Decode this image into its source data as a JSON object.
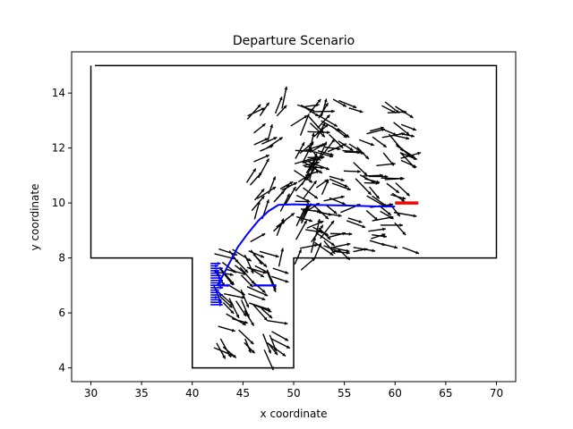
{
  "chart_data": {
    "type": "line",
    "title": "Departure Scenario",
    "xlabel": "x coordinate",
    "ylabel": "y coordinate",
    "xlim": [
      28.1,
      71.9
    ],
    "ylim": [
      3.5,
      15.5
    ],
    "xticks": [
      30,
      35,
      40,
      45,
      50,
      55,
      60,
      65,
      70
    ],
    "yticks": [
      4,
      6,
      8,
      10,
      12,
      14
    ],
    "grid": false,
    "legend": "none",
    "colors": {
      "boundary": "#000000",
      "trajectory": "#0000ff",
      "goal": "#ff0000",
      "samples": "#000000"
    },
    "boundary": {
      "x": [
        30.4,
        70,
        70,
        50,
        50,
        40,
        40,
        30,
        30
      ],
      "y": [
        15,
        15,
        8,
        8,
        4,
        4,
        8,
        8,
        15
      ]
    },
    "trajectory": {
      "x": [
        42.5,
        43.5,
        44.5,
        45.5,
        46.5,
        47.5,
        48.5,
        50,
        52,
        55,
        58,
        60
      ],
      "y": [
        7.0,
        7.7,
        8.4,
        8.9,
        9.35,
        9.7,
        9.93,
        9.95,
        9.93,
        9.91,
        9.88,
        9.87
      ]
    },
    "start_pose": {
      "x": 42.5,
      "y": 7.0,
      "heading_deg": 0
    },
    "goal_pose": {
      "x": 60.0,
      "y": 10.0,
      "heading_deg": 0
    },
    "sample_arrow_region": {
      "x": [
        42,
        63
      ],
      "y": [
        4.2,
        14.3
      ]
    }
  }
}
